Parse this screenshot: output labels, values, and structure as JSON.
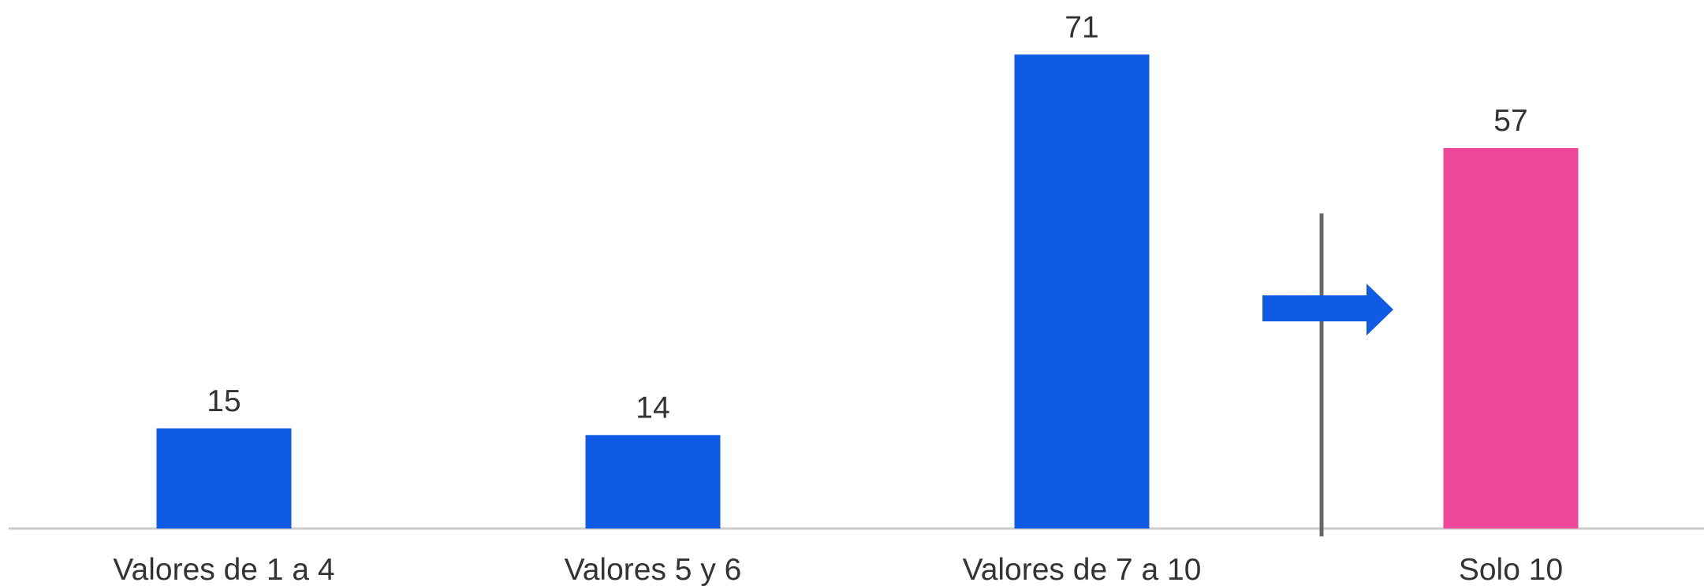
{
  "chart_data": {
    "type": "bar",
    "categories": [
      "Valores de 1 a 4",
      "Valores 5 y 6",
      "Valores de 7 a 10",
      "Solo 10"
    ],
    "values": [
      15,
      14,
      71,
      57
    ],
    "colors": [
      "#0f5be6",
      "#0f5be6",
      "#0f5be6",
      "#ee4699"
    ],
    "ylim": [
      0,
      80
    ]
  }
}
